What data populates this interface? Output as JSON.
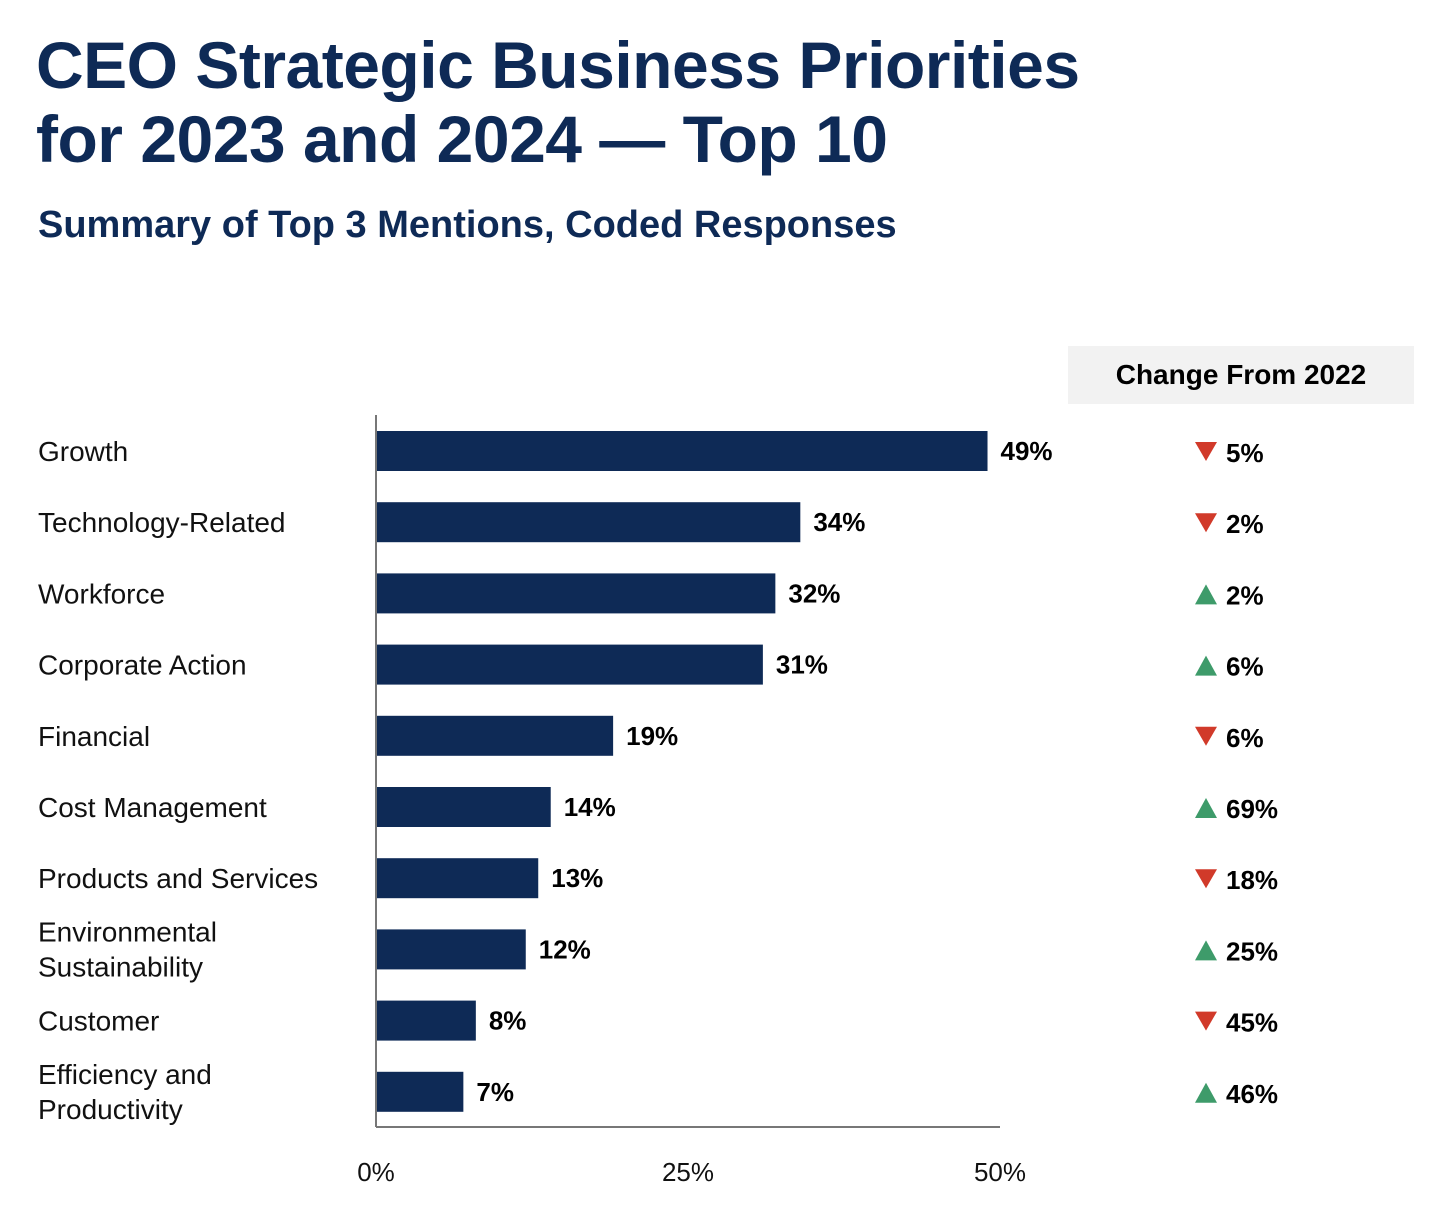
{
  "chart_data": {
    "type": "bar",
    "orientation": "horizontal",
    "title": "CEO Strategic Business Priorities\nfor 2023 and 2024 — Top 10",
    "subtitle": "Summary of Top 3 Mentions, Coded Responses",
    "categories": [
      [
        "Growth"
      ],
      [
        "Technology-Related"
      ],
      [
        "Workforce"
      ],
      [
        "Corporate Action"
      ],
      [
        "Financial"
      ],
      [
        "Cost Management"
      ],
      [
        "Products and Services"
      ],
      [
        "Environmental",
        "Sustainability"
      ],
      [
        "Customer"
      ],
      [
        "Efficiency and",
        "Productivity"
      ]
    ],
    "values": [
      49,
      34,
      32,
      31,
      19,
      14,
      13,
      12,
      8,
      7
    ],
    "value_labels": [
      "49%",
      "34%",
      "32%",
      "31%",
      "19%",
      "14%",
      "13%",
      "12%",
      "8%",
      "7%"
    ],
    "xlim": [
      0,
      50
    ],
    "xticks": [
      0,
      25,
      50
    ],
    "xtick_labels": [
      "0%",
      "25%",
      "50%"
    ],
    "grid": false,
    "bar_color": "#0e2a56",
    "change_header": "Change From 2022",
    "change": [
      {
        "direction": "down",
        "label": "5%"
      },
      {
        "direction": "down",
        "label": "2%"
      },
      {
        "direction": "up",
        "label": "2%"
      },
      {
        "direction": "up",
        "label": "6%"
      },
      {
        "direction": "down",
        "label": "6%"
      },
      {
        "direction": "up",
        "label": "69%"
      },
      {
        "direction": "down",
        "label": "18%"
      },
      {
        "direction": "up",
        "label": "25%"
      },
      {
        "direction": "down",
        "label": "45%"
      },
      {
        "direction": "up",
        "label": "46%"
      }
    ],
    "up_color": "#3e9b6a",
    "down_color": "#d13a2a"
  }
}
